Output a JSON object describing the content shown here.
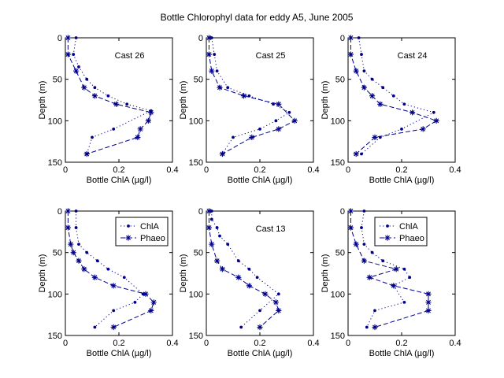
{
  "figure": {
    "title": "Bottle Chlorophyl data for eddy A5, June 2005"
  },
  "colors": {
    "series": "#00008B",
    "axes": "#000000",
    "background": "#ffffff"
  },
  "chart_data": [
    {
      "type": "line",
      "annotation": "Cast 26",
      "xlabel": "Bottle ChlA (µg/l)",
      "ylabel": "Depth (m)",
      "xlim": [
        0,
        0.4
      ],
      "ylim": [
        0,
        150
      ],
      "y_reversed": true,
      "xticks": [
        "0",
        "0.2",
        "0.4"
      ],
      "yticks": [
        "0",
        "50",
        "100",
        "150"
      ],
      "legend": null,
      "series": [
        {
          "name": "ChlA",
          "marker": "dot",
          "line": "dotted",
          "points": [
            [
              0.04,
              0
            ],
            [
              0.03,
              20
            ],
            [
              0.05,
              35
            ],
            [
              0.08,
              50
            ],
            [
              0.11,
              60
            ],
            [
              0.16,
              70
            ],
            [
              0.23,
              80
            ],
            [
              0.32,
              88
            ],
            [
              0.18,
              110
            ],
            [
              0.1,
              120
            ],
            [
              0.08,
              140
            ]
          ]
        },
        {
          "name": "Phaeo",
          "marker": "star",
          "line": "dashed",
          "points": [
            [
              0.01,
              0
            ],
            [
              0.01,
              20
            ],
            [
              0.04,
              40
            ],
            [
              0.07,
              60
            ],
            [
              0.11,
              70
            ],
            [
              0.19,
              80
            ],
            [
              0.32,
              90
            ],
            [
              0.31,
              100
            ],
            [
              0.28,
              110
            ],
            [
              0.27,
              120
            ],
            [
              0.08,
              140
            ]
          ]
        }
      ]
    },
    {
      "type": "line",
      "annotation": "Cast 25",
      "xlabel": "Bottle ChlA (µg/l)",
      "ylabel": "Depth (m)",
      "xlim": [
        0,
        0.4
      ],
      "ylim": [
        0,
        150
      ],
      "y_reversed": true,
      "xticks": [
        "0",
        "0.2",
        "0.4"
      ],
      "yticks": [
        "0",
        "50",
        "100",
        "150"
      ],
      "legend": null,
      "series": [
        {
          "name": "ChlA",
          "marker": "dot",
          "line": "dotted",
          "points": [
            [
              0.02,
              0
            ],
            [
              0.03,
              20
            ],
            [
              0.04,
              40
            ],
            [
              0.08,
              60
            ],
            [
              0.16,
              70
            ],
            [
              0.25,
              80
            ],
            [
              0.31,
              90
            ],
            [
              0.26,
              100
            ],
            [
              0.2,
              110
            ],
            [
              0.1,
              120
            ],
            [
              0.06,
              140
            ]
          ]
        },
        {
          "name": "Phaeo",
          "marker": "star",
          "line": "dashed",
          "points": [
            [
              0.01,
              0
            ],
            [
              0.01,
              20
            ],
            [
              0.02,
              40
            ],
            [
              0.05,
              60
            ],
            [
              0.14,
              70
            ],
            [
              0.27,
              80
            ],
            [
              0.33,
              100
            ],
            [
              0.27,
              110
            ],
            [
              0.17,
              120
            ],
            [
              0.06,
              140
            ]
          ]
        }
      ]
    },
    {
      "type": "line",
      "annotation": "Cast 24",
      "xlabel": "Bottle ChlA (µg/l)",
      "ylabel": "Depth (m)",
      "xlim": [
        0,
        0.4
      ],
      "ylim": [
        0,
        150
      ],
      "y_reversed": true,
      "xticks": [
        "0",
        "0.2",
        "0.4"
      ],
      "yticks": [
        "0",
        "50",
        "100",
        "150"
      ],
      "legend": null,
      "series": [
        {
          "name": "ChlA",
          "marker": "dot",
          "line": "dotted",
          "points": [
            [
              0.04,
              0
            ],
            [
              0.05,
              20
            ],
            [
              0.06,
              40
            ],
            [
              0.09,
              50
            ],
            [
              0.13,
              60
            ],
            [
              0.17,
              70
            ],
            [
              0.21,
              80
            ],
            [
              0.32,
              90
            ],
            [
              0.2,
              110
            ],
            [
              0.12,
              120
            ],
            [
              0.05,
              140
            ]
          ]
        },
        {
          "name": "Phaeo",
          "marker": "star",
          "line": "dashed",
          "points": [
            [
              0.01,
              0
            ],
            [
              0.01,
              20
            ],
            [
              0.03,
              40
            ],
            [
              0.06,
              60
            ],
            [
              0.09,
              70
            ],
            [
              0.12,
              80
            ],
            [
              0.24,
              90
            ],
            [
              0.33,
              100
            ],
            [
              0.28,
              110
            ],
            [
              0.1,
              120
            ],
            [
              0.03,
              140
            ]
          ]
        }
      ]
    },
    {
      "type": "line",
      "annotation": "",
      "xlabel": "Bottle ChlA (µg/l)",
      "ylabel": "Depth (m)",
      "xlim": [
        0,
        0.4
      ],
      "ylim": [
        0,
        150
      ],
      "y_reversed": true,
      "xticks": [
        "0",
        "0.2",
        "0.4"
      ],
      "yticks": [
        "0",
        "50",
        "100",
        "150"
      ],
      "legend": {
        "position": "top-right",
        "entries": [
          "ChlA",
          "Phaeo"
        ]
      },
      "series": [
        {
          "name": "ChlA",
          "marker": "dot",
          "line": "dotted",
          "points": [
            [
              0.04,
              0
            ],
            [
              0.04,
              20
            ],
            [
              0.05,
              40
            ],
            [
              0.08,
              50
            ],
            [
              0.12,
              60
            ],
            [
              0.16,
              70
            ],
            [
              0.22,
              80
            ],
            [
              0.29,
              100
            ],
            [
              0.26,
              110
            ],
            [
              0.18,
              120
            ],
            [
              0.11,
              140
            ]
          ]
        },
        {
          "name": "Phaeo",
          "marker": "star",
          "line": "dashed",
          "points": [
            [
              0.01,
              0
            ],
            [
              0.01,
              20
            ],
            [
              0.02,
              40
            ],
            [
              0.03,
              50
            ],
            [
              0.05,
              60
            ],
            [
              0.07,
              70
            ],
            [
              0.11,
              80
            ],
            [
              0.18,
              90
            ],
            [
              0.3,
              100
            ],
            [
              0.33,
              110
            ],
            [
              0.32,
              120
            ],
            [
              0.18,
              140
            ]
          ]
        }
      ]
    },
    {
      "type": "line",
      "annotation": "Cast 13",
      "xlabel": "Bottle ChlA (µg/l)",
      "ylabel": "Depth (m)",
      "xlim": [
        0,
        0.4
      ],
      "ylim": [
        0,
        150
      ],
      "y_reversed": true,
      "xticks": [
        "0",
        "0.2",
        "0.4"
      ],
      "yticks": [
        "0",
        "50",
        "100",
        "150"
      ],
      "legend": null,
      "series": [
        {
          "name": "ChlA",
          "marker": "dot",
          "line": "dotted",
          "points": [
            [
              0.02,
              0
            ],
            [
              0.02,
              10
            ],
            [
              0.04,
              20
            ],
            [
              0.05,
              30
            ],
            [
              0.08,
              40
            ],
            [
              0.12,
              60
            ],
            [
              0.16,
              70
            ],
            [
              0.19,
              80
            ],
            [
              0.27,
              100
            ],
            [
              0.2,
              120
            ],
            [
              0.13,
              140
            ]
          ]
        },
        {
          "name": "Phaeo",
          "marker": "star",
          "line": "dashed",
          "points": [
            [
              0.01,
              0
            ],
            [
              0.01,
              20
            ],
            [
              0.02,
              40
            ],
            [
              0.04,
              60
            ],
            [
              0.06,
              70
            ],
            [
              0.12,
              80
            ],
            [
              0.16,
              90
            ],
            [
              0.22,
              100
            ],
            [
              0.26,
              110
            ],
            [
              0.27,
              120
            ],
            [
              0.2,
              140
            ]
          ]
        }
      ]
    },
    {
      "type": "line",
      "annotation": "",
      "xlabel": "Bottle ChlA (µg/l)",
      "ylabel": "Depth (m)",
      "xlim": [
        0,
        0.4
      ],
      "ylim": [
        0,
        150
      ],
      "y_reversed": true,
      "xticks": [
        "0",
        "0.2",
        "0.4"
      ],
      "yticks": [
        "0",
        "50",
        "100",
        "150"
      ],
      "legend": {
        "position": "top-center",
        "entries": [
          "ChlA",
          "Phaeo"
        ]
      },
      "series": [
        {
          "name": "ChlA",
          "marker": "dot",
          "line": "dotted",
          "points": [
            [
              0.06,
              0
            ],
            [
              0.05,
              20
            ],
            [
              0.06,
              40
            ],
            [
              0.09,
              50
            ],
            [
              0.13,
              60
            ],
            [
              0.21,
              70
            ],
            [
              0.23,
              80
            ],
            [
              0.17,
              90
            ],
            [
              0.21,
              110
            ],
            [
              0.1,
              120
            ],
            [
              0.07,
              140
            ]
          ]
        },
        {
          "name": "Phaeo",
          "marker": "star",
          "line": "dashed",
          "points": [
            [
              0.01,
              0
            ],
            [
              0.01,
              20
            ],
            [
              0.03,
              40
            ],
            [
              0.06,
              60
            ],
            [
              0.18,
              70
            ],
            [
              0.08,
              80
            ],
            [
              0.17,
              90
            ],
            [
              0.3,
              100
            ],
            [
              0.3,
              110
            ],
            [
              0.3,
              120
            ],
            [
              0.1,
              140
            ]
          ]
        }
      ]
    }
  ]
}
